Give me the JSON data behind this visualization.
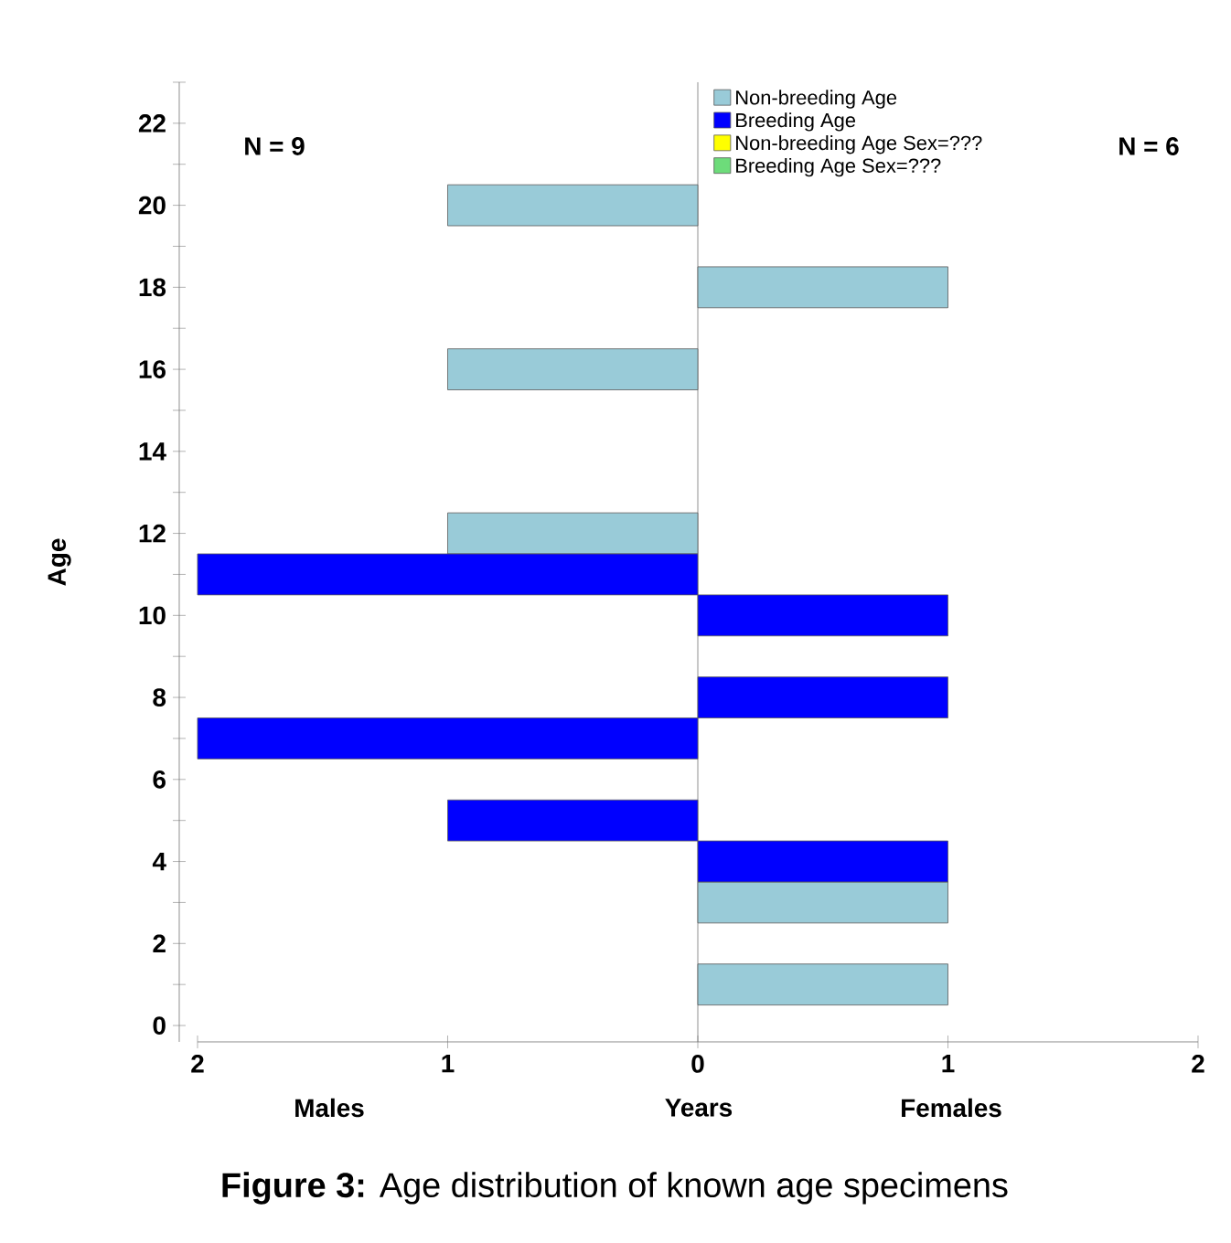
{
  "chart_data": {
    "type": "bar",
    "orientation": "horizontal",
    "xlabel": "Years",
    "ylabel": "Age",
    "xlim": [
      -2,
      2
    ],
    "xticks": [
      {
        "value": -2,
        "label": "2"
      },
      {
        "value": -1,
        "label": "1"
      },
      0,
      1,
      2
    ],
    "ylim": [
      -0.4,
      23
    ],
    "yticks": [
      0,
      {
        "value": 1,
        "label": null
      },
      2,
      {
        "value": 3,
        "label": null
      },
      4,
      {
        "value": 5,
        "label": null
      },
      6,
      {
        "value": 7,
        "label": null
      },
      8,
      {
        "value": 9,
        "label": null
      },
      10,
      {
        "value": 11,
        "label": null
      },
      12,
      {
        "value": 13,
        "label": null
      },
      14,
      {
        "value": 15,
        "label": null
      },
      16,
      {
        "value": 17,
        "label": null
      },
      18,
      {
        "value": 19,
        "label": null
      },
      20,
      {
        "value": 21,
        "label": null
      },
      22,
      {
        "value": 23,
        "label": null
      }
    ],
    "series": [
      {
        "name": "Non-breeding Age",
        "color": "#99cbd8",
        "x": [
          1,
          3,
          12,
          16,
          18,
          20
        ],
        "values": [
          1,
          1,
          -1,
          -1,
          1,
          -1
        ]
      },
      {
        "name": "Breeding Age",
        "color": "#0000ff",
        "x": [
          4,
          5,
          7,
          8,
          10,
          11
        ],
        "values": [
          1,
          -1,
          -2,
          1,
          1,
          -2
        ]
      },
      {
        "name": "Non-breeding Age Sex=???",
        "color": "#ffff00"
      },
      {
        "name": "Breeding Age Sex=???",
        "color": "#6ddc7a"
      }
    ],
    "legend": "top right",
    "annotations": [
      "N = 9",
      "N = 6",
      "Males",
      "Females",
      "**Figure 3:** Age distribution of known age specimens"
    ]
  }
}
